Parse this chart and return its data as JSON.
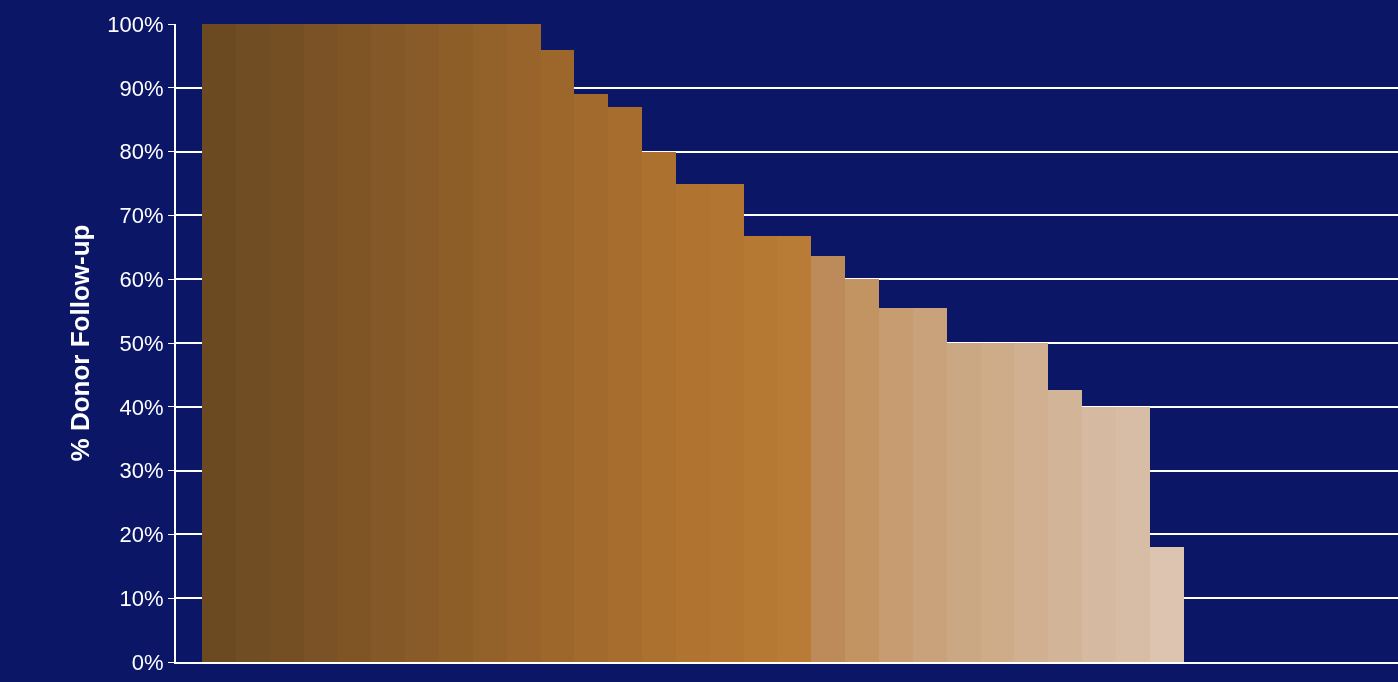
{
  "chart_data": {
    "type": "bar",
    "ylabel": "% Donor Follow-up",
    "categories": [
      null,
      null,
      null,
      null,
      null,
      null,
      null,
      null,
      null,
      null,
      null,
      null,
      null,
      null,
      null,
      null,
      null,
      null,
      null,
      null,
      null,
      null,
      null,
      null,
      null,
      null,
      null,
      null,
      null
    ],
    "values": [
      100,
      100,
      100,
      100,
      100,
      100,
      100,
      100,
      100,
      100,
      96,
      89,
      87,
      80,
      75,
      75,
      66.7,
      66.7,
      63.6,
      60,
      55.5,
      55.5,
      50,
      50,
      50,
      42.7,
      40,
      40,
      18.1
    ],
    "colors": [
      "#6b4a22",
      "#704d23",
      "#754f24",
      "#7a5225",
      "#7f5526",
      "#845827",
      "#895b28",
      "#8e5e29",
      "#93612a",
      "#98642b",
      "#9d672c",
      "#a26a2d",
      "#a76d2e",
      "#ac702f",
      "#b17330",
      "#b37632",
      "#b67934",
      "#b87c36",
      "#bd8a5a",
      "#c29462",
      "#c69c70",
      "#c9a17a",
      "#cba884",
      "#ceac8a",
      "#d0b090",
      "#d2b498",
      "#d5b9a0",
      "#d8bda6",
      "#dcc4b0"
    ],
    "ylim": [
      0,
      100
    ],
    "yticks": [
      {
        "value": 0,
        "label": "0%"
      },
      {
        "value": 10,
        "label": "10%"
      },
      {
        "value": 20,
        "label": "20%"
      },
      {
        "value": 30,
        "label": "30%"
      },
      {
        "value": 40,
        "label": "40%"
      },
      {
        "value": 50,
        "label": "50%"
      },
      {
        "value": 60,
        "label": "60%"
      },
      {
        "value": 70,
        "label": "70%"
      },
      {
        "value": 80,
        "label": "80%"
      },
      {
        "value": 90,
        "label": "90%"
      },
      {
        "value": 100,
        "label": "100%"
      }
    ],
    "grid": "y",
    "tick_labels": "y"
  }
}
